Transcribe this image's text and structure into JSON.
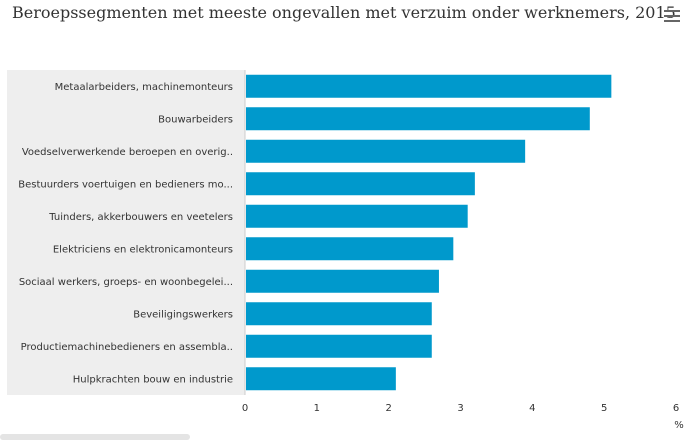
{
  "chart_data": {
    "type": "bar",
    "orientation": "horizontal",
    "title": "Beroepssegmenten met meeste ongevallen met verzuim onder werknemers, 2015",
    "categories": [
      "Metaalarbeiders, machinemonteurs",
      "Bouwarbeiders",
      "Voedselverwerkende beroepen en overig..",
      "Bestuurders voertuigen en bedieners mo...",
      "Tuinders, akkerbouwers en veetelers",
      "Elektriciens en elektronicamonteurs",
      "Sociaal werkers, groeps- en woonbegelei...",
      "Beveiligingswerkers",
      "Productiemachinebedieners en assembla..",
      "Hulpkrachten bouw en industrie"
    ],
    "values": [
      5.1,
      4.8,
      3.9,
      3.2,
      3.1,
      2.9,
      2.7,
      2.6,
      2.6,
      2.1
    ],
    "xlim": [
      0,
      6
    ],
    "xticks": [
      "0",
      "1",
      "2",
      "3",
      "4",
      "5",
      "6"
    ],
    "unit_label": "%",
    "bar_color": "#0099cc",
    "label_panel_color": "#eeeeee",
    "grid": false,
    "legend": "none"
  },
  "menu": {
    "icon": "hamburger-menu-icon"
  }
}
